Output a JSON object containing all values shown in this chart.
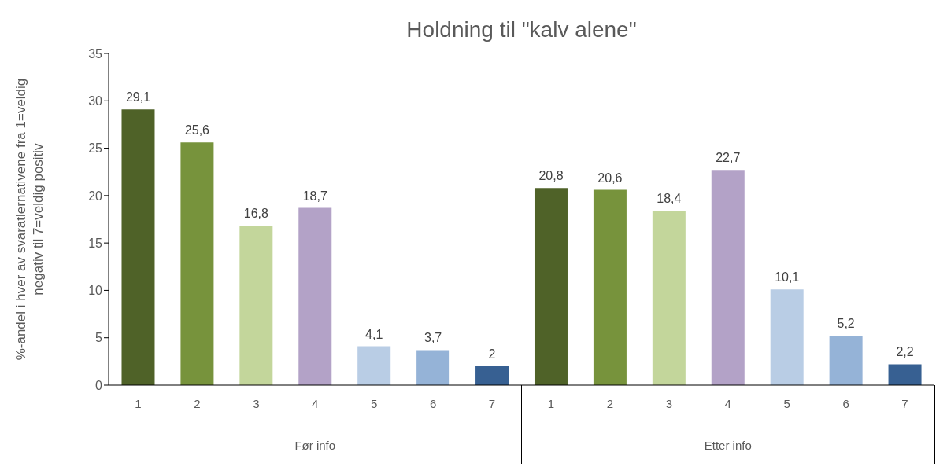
{
  "chart_data": {
    "type": "bar",
    "title": "Holdning til \"kalv alene\"",
    "ylabel": "%-andel i hver av svaratlernativene fra 1=veldig negativ til 7=veldig positiv",
    "categories": [
      "1",
      "2",
      "3",
      "4",
      "5",
      "6",
      "7",
      "1",
      "2",
      "3",
      "4",
      "5",
      "6",
      "7"
    ],
    "values": [
      29.1,
      25.6,
      16.8,
      18.7,
      4.1,
      3.7,
      2,
      20.8,
      20.6,
      18.4,
      22.7,
      10.1,
      5.2,
      2.2
    ],
    "value_labels": [
      "29,1",
      "25,6",
      "16,8",
      "18,7",
      "4,1",
      "3,7",
      "2",
      "20,8",
      "20,6",
      "18,4",
      "22,7",
      "10,1",
      "5,2",
      "2,2"
    ],
    "colors": [
      "#4f6228",
      "#77933c",
      "#c3d69b",
      "#b3a2c7",
      "#b9cde5",
      "#95b3d7",
      "#376092",
      "#4f6228",
      "#77933c",
      "#c3d69b",
      "#b3a2c7",
      "#b9cde5",
      "#95b3d7",
      "#376092"
    ],
    "ylim": [
      0,
      35
    ],
    "yticks": [
      0,
      5,
      10,
      15,
      20,
      25,
      30,
      35
    ],
    "annotations": [
      "Før info",
      "Etter info"
    ]
  }
}
